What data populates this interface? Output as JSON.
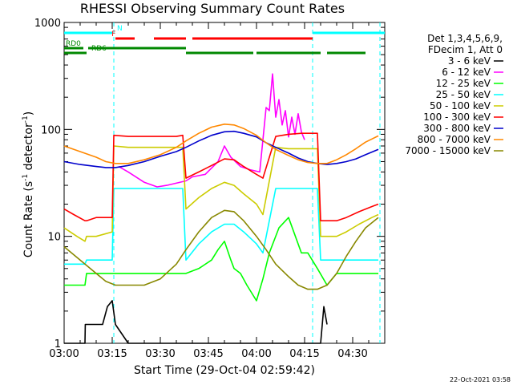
{
  "chart_data": {
    "type": "line",
    "title": "RHESSI Observing Summary Count Rates",
    "xlabel": "Start Time (29-Oct-04 02:59:42)",
    "ylabel_main": "Count Rate (s",
    "ylabel_sup1": "-1",
    "ylabel_mid": " detector",
    "ylabel_sup2": "-1",
    "ylabel_end": ")",
    "yscale": "log",
    "ylim": [
      1,
      1000
    ],
    "xlim_minutes": [
      0,
      100
    ],
    "x_ticks": [
      {
        "minutes": 0,
        "label": "03:00"
      },
      {
        "minutes": 15,
        "label": "03:15"
      },
      {
        "minutes": 30,
        "label": "03:30"
      },
      {
        "minutes": 45,
        "label": "03:45"
      },
      {
        "minutes": 60,
        "label": "04:00"
      },
      {
        "minutes": 75,
        "label": "04:15"
      },
      {
        "minutes": 90,
        "label": "04:30"
      }
    ],
    "y_ticks": [
      {
        "value": 1,
        "label": "1"
      },
      {
        "value": 10,
        "label": "10"
      },
      {
        "value": 100,
        "label": "100"
      },
      {
        "value": 1000,
        "label": "1000"
      }
    ],
    "legend_header": [
      "Det 1,3,4,5,6,9,",
      "FDecim 1, Att 0"
    ],
    "series": [
      {
        "name": "3 - 6 keV",
        "color": "#000000",
        "x": [
          0,
          6.5,
          6.6,
          12,
          13.5,
          15,
          16,
          20,
          25,
          30,
          35,
          38,
          40,
          44,
          48,
          52,
          55,
          58,
          60,
          62,
          65,
          67,
          69,
          71,
          73,
          75,
          77,
          79,
          80,
          81,
          82
        ],
        "y": [
          1,
          1,
          1.5,
          1.5,
          2.2,
          2.5,
          1.5,
          1,
          1,
          1,
          1,
          1,
          1,
          1,
          1,
          1,
          1,
          1,
          1,
          1,
          1,
          1,
          1,
          1,
          1,
          1,
          1,
          1,
          1,
          2.2,
          1.5
        ]
      },
      {
        "name": "6 - 12 keV",
        "color": "#ff00ff",
        "x": [
          17,
          20,
          25,
          29,
          32,
          38,
          40,
          44,
          48,
          50,
          52,
          55,
          58,
          61,
          63,
          64,
          65,
          66,
          67,
          68,
          69,
          70,
          71,
          72,
          73,
          74,
          75
        ],
        "y": [
          45,
          40,
          32,
          29,
          30,
          33,
          36,
          38,
          50,
          70,
          55,
          45,
          42,
          40,
          160,
          150,
          330,
          130,
          190,
          110,
          150,
          85,
          130,
          90,
          140,
          95,
          80
        ]
      },
      {
        "name": "12 - 25 keV",
        "color": "#00ff00",
        "x": [
          0,
          6.5,
          7,
          10,
          15,
          16,
          20,
          25,
          30,
          37,
          38,
          42,
          46,
          48,
          50,
          52,
          53,
          55,
          57,
          60,
          62,
          64,
          67,
          70,
          74,
          76,
          79,
          82,
          85,
          90,
          95,
          98
        ],
        "y": [
          3.5,
          3.5,
          4.5,
          4.5,
          4.5,
          4.5,
          4.5,
          4.5,
          4.5,
          4.5,
          4.5,
          5,
          6,
          7.5,
          9,
          6,
          5,
          4.5,
          3.5,
          2.5,
          4,
          7,
          12,
          15,
          7,
          7,
          5,
          3.5,
          4.5,
          4.5,
          4.5,
          4.5
        ]
      },
      {
        "name": "25 - 50 keV",
        "color": "#00ffff",
        "x": [
          0,
          6.5,
          7,
          12,
          15,
          15.5,
          20,
          25,
          30,
          35,
          37,
          38,
          42,
          46,
          50,
          53,
          56,
          60,
          62,
          66,
          70,
          72,
          74,
          76,
          78,
          79,
          80,
          82,
          85,
          90,
          95,
          98
        ],
        "y": [
          5.5,
          5.5,
          6,
          6,
          6,
          28,
          28,
          28,
          28,
          28,
          28,
          6,
          8.5,
          11,
          13,
          13,
          11,
          8.5,
          7,
          28,
          28,
          28,
          28,
          28,
          28,
          28,
          6,
          6,
          6,
          6,
          6,
          6
        ]
      },
      {
        "name": "50 - 100 keV",
        "color": "#cccc00",
        "x": [
          0,
          4,
          6.5,
          7,
          10,
          15,
          15.5,
          20,
          25,
          30,
          35,
          37,
          38,
          42,
          46,
          50,
          53,
          56,
          60,
          62,
          66,
          70,
          74,
          78,
          79,
          80,
          82,
          85,
          88,
          92,
          96,
          98
        ],
        "y": [
          12,
          10,
          9,
          10,
          10,
          11,
          70,
          68,
          68,
          68,
          68,
          68,
          18,
          23,
          28,
          32,
          30,
          25,
          20,
          16,
          68,
          66,
          66,
          66,
          66,
          10,
          10,
          10,
          11,
          13,
          15,
          16
        ]
      },
      {
        "name": "100 - 300 keV",
        "color": "#ff0000",
        "x": [
          0,
          3,
          6.5,
          7,
          10,
          15,
          15.5,
          20,
          25,
          30,
          35,
          37,
          38,
          42,
          46,
          50,
          53,
          56,
          60,
          62,
          66,
          70,
          74,
          78,
          79,
          80,
          82,
          85,
          88,
          92,
          96,
          98
        ],
        "y": [
          18,
          16,
          14,
          14,
          15,
          15,
          88,
          86,
          86,
          86,
          86,
          88,
          35,
          40,
          46,
          53,
          52,
          45,
          38,
          35,
          86,
          90,
          92,
          92,
          92,
          14,
          14,
          14,
          15,
          17,
          19,
          20
        ]
      },
      {
        "name": "300 - 800 keV",
        "color": "#0000cc",
        "x": [
          0,
          5,
          10,
          13,
          16,
          20,
          25,
          30,
          35,
          38,
          42,
          46,
          50,
          53,
          56,
          60,
          63,
          66,
          70,
          73,
          76,
          79,
          82,
          85,
          88,
          91,
          94,
          98
        ],
        "y": [
          50,
          47,
          45,
          44,
          44,
          46,
          50,
          56,
          62,
          68,
          78,
          88,
          95,
          96,
          92,
          85,
          75,
          68,
          60,
          54,
          50,
          48,
          47,
          48,
          50,
          53,
          58,
          65
        ]
      },
      {
        "name": "800 - 7000 keV",
        "color": "#ff8800",
        "x": [
          0,
          5,
          10,
          13,
          16,
          20,
          25,
          30,
          35,
          38,
          42,
          46,
          50,
          53,
          56,
          60,
          63,
          66,
          70,
          73,
          76,
          79,
          82,
          85,
          88,
          91,
          94,
          98
        ],
        "y": [
          70,
          62,
          55,
          50,
          48,
          48,
          52,
          58,
          68,
          78,
          92,
          105,
          112,
          110,
          102,
          88,
          75,
          65,
          57,
          52,
          49,
          48,
          48,
          52,
          58,
          66,
          76,
          87
        ]
      },
      {
        "name": "7000 - 15000 keV",
        "color": "#888800",
        "x": [
          0,
          5,
          10,
          13,
          16,
          20,
          25,
          30,
          35,
          38,
          42,
          46,
          50,
          53,
          56,
          60,
          63,
          66,
          70,
          73,
          76,
          79,
          82,
          85,
          88,
          91,
          94,
          98
        ],
        "y": [
          8,
          6,
          4.5,
          3.8,
          3.5,
          3.5,
          3.5,
          4,
          5.5,
          7.5,
          11,
          15,
          17.5,
          17,
          14,
          10,
          7.5,
          5.5,
          4.2,
          3.5,
          3.2,
          3.2,
          3.5,
          4.5,
          6.5,
          9,
          12,
          15
        ]
      }
    ],
    "state_bars": [
      {
        "label": "N",
        "color": "#00ffff",
        "row": 1,
        "segments": [
          [
            0,
            15
          ],
          [
            77.5,
            100
          ]
        ],
        "label_at": 16.5
      },
      {
        "label": "F",
        "color": "#ff0000",
        "row": 2,
        "segments": [
          [
            16,
            22
          ],
          [
            28,
            38
          ],
          [
            40,
            77.5
          ]
        ],
        "label_at": 14.8
      },
      {
        "label": "RD0",
        "color": "#008800",
        "row": 3,
        "segments": [
          [
            0,
            6
          ],
          [
            7.5,
            38
          ]
        ],
        "label_at": 0.5
      },
      {
        "label": "RD6",
        "color": "#008800",
        "row": 4,
        "segments": [
          [
            0,
            7
          ],
          [
            38,
            59
          ],
          [
            60,
            80
          ],
          [
            82,
            94
          ]
        ],
        "label_at": 8.5
      }
    ],
    "vertical_markers": [
      {
        "minutes": 15.5,
        "color": "#00ffff",
        "style": "dashed"
      },
      {
        "minutes": 77.5,
        "color": "#00ffff",
        "style": "dashed"
      },
      {
        "minutes": 98.5,
        "color": "#00ffff",
        "style": "dashed"
      }
    ],
    "footer_timestamp": "22-Oct-2021 03:58"
  }
}
